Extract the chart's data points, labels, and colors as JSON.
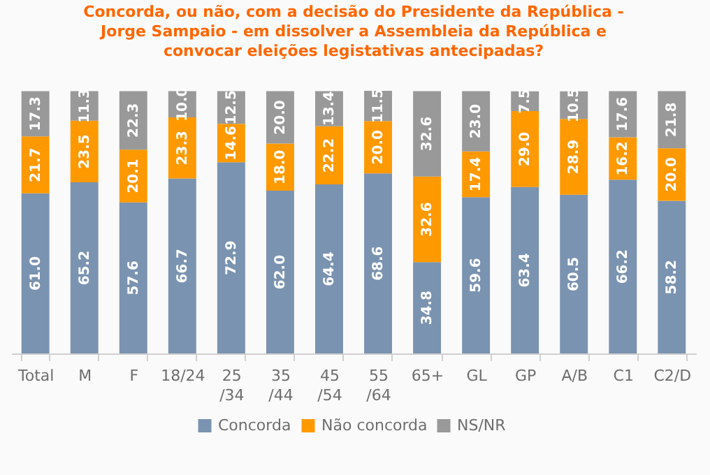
{
  "chart_data": {
    "type": "bar",
    "stacked": true,
    "title": "Concorda, ou não, com a decisão do Presidente da República - Jorge Sampaio - em dissolver a Assembleia da República e convocar eleições legistativas antecipadas?",
    "categories": [
      "Total",
      "M",
      "F",
      "18/24",
      "25 /34",
      "35 /44",
      "45 /54",
      "55 /64",
      "65+",
      "GL",
      "GP",
      "A/B",
      "C1",
      "C2/D"
    ],
    "series": [
      {
        "name": "Concorda",
        "color": "#7a93b0",
        "values": [
          61.0,
          65.2,
          57.6,
          66.7,
          72.9,
          62.0,
          64.4,
          68.6,
          34.8,
          59.6,
          63.4,
          60.5,
          66.2,
          58.2
        ],
        "value_labels": [
          "61.0",
          "65.2",
          "57.6",
          "66.7",
          "72.9",
          "62.0",
          "64.4",
          "68.6",
          "34.8",
          "59.6",
          "63.4",
          "60.5",
          "66.2",
          "58.2"
        ]
      },
      {
        "name": "Não concorda",
        "color": "#ff9900",
        "values": [
          21.7,
          23.5,
          20.1,
          23.3,
          14.6,
          18.0,
          22.2,
          20.0,
          32.6,
          17.4,
          29.0,
          28.9,
          16.2,
          20.0
        ],
        "value_labels": [
          "21.7",
          "23.5",
          "20.1",
          "23.3",
          "14.6",
          "18.0",
          "22.2",
          "20.0",
          "32.6",
          "17.4",
          "29.0",
          "28.9",
          "16.2",
          "20.0"
        ]
      },
      {
        "name": "NS/NR",
        "color": "#999999",
        "values": [
          17.3,
          11.3,
          22.3,
          10.0,
          12.5,
          20.0,
          13.4,
          11.5,
          32.6,
          23.0,
          7.5,
          10.5,
          17.6,
          21.8
        ],
        "value_labels": [
          "17.3",
          "11.3",
          "22.3",
          "10.0",
          "12.5",
          "20.0",
          "13.4",
          "11.5",
          "32.6",
          "23.0",
          "7.5",
          "10.5",
          "17.6",
          "21.8"
        ]
      }
    ],
    "legend": "bottom",
    "grid": false,
    "tick_labels": "x"
  }
}
